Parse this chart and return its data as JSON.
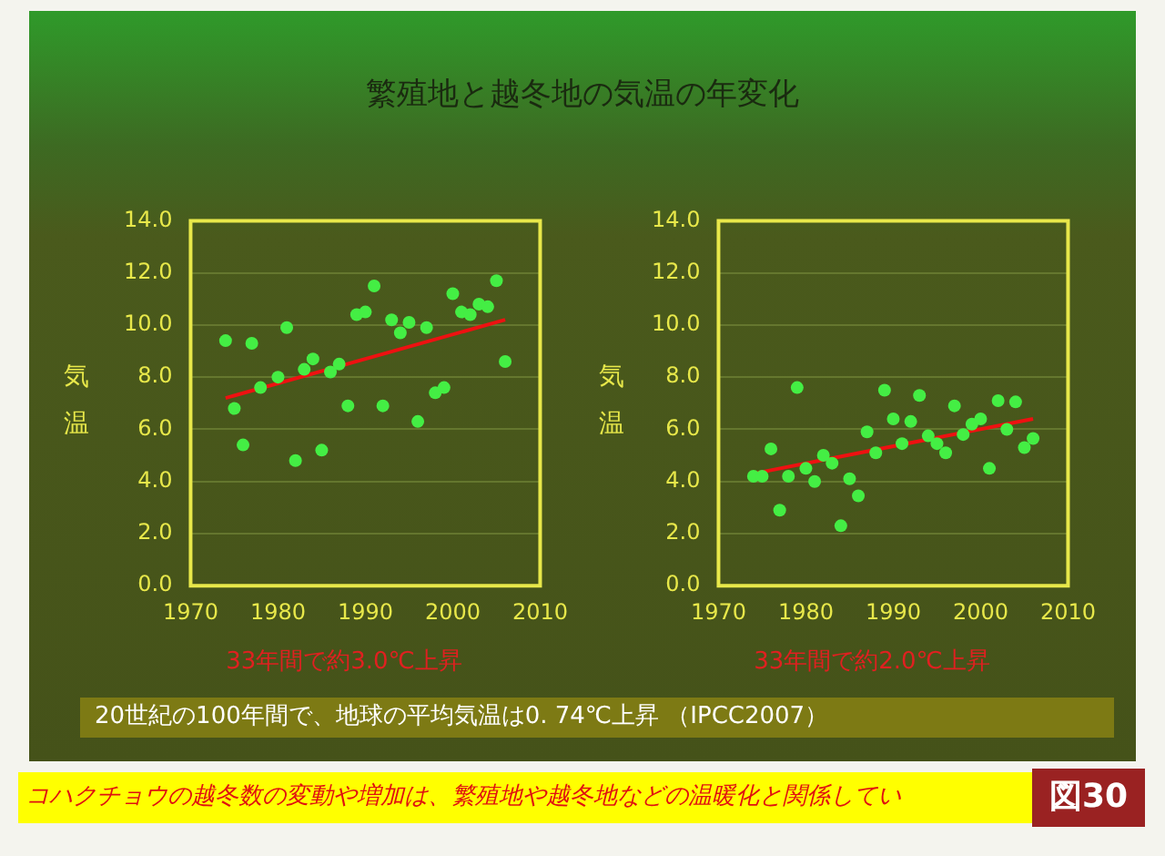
{
  "chart_data": [
    {
      "type": "scatter",
      "title": "繁殖地と越冬地の気温の年変化",
      "xlabel": "33年間で約3.0℃上昇",
      "ylabel": "気温",
      "annotations": [
        "20世紀の100年間で、地球の平均気温は0. 74℃上昇 （IPCC2007）",
        "コハクチョウの越冬数の変動や増加は、繁殖地や越冬地などの温暖化と関係してい",
        "図30"
      ],
      "series": [
        {
          "color": "#44ee44",
          "x": [
            1974,
            1975,
            1976,
            1977,
            1978,
            1980,
            1981,
            1982,
            1983,
            1984,
            1985,
            1986,
            1987,
            1988,
            1989,
            1990,
            1991,
            1992,
            1993,
            1994,
            1995,
            1996,
            1997,
            1998,
            1999,
            2000,
            2001,
            2002,
            2003,
            2004,
            2005,
            2006
          ],
          "values": [
            9.4,
            6.8,
            5.4,
            9.3,
            7.6,
            8.0,
            9.9,
            4.8,
            8.3,
            8.7,
            5.2,
            8.2,
            8.5,
            6.9,
            10.4,
            10.5,
            11.5,
            6.9,
            10.2,
            9.7,
            10.1,
            6.3,
            9.9,
            7.4,
            7.6,
            11.2,
            10.5,
            10.4,
            10.8,
            10.7,
            11.7,
            8.6
          ]
        },
        {
          "type": "line",
          "color": "#ee1111",
          "marker": "none",
          "x": [
            1974,
            2006
          ],
          "values": [
            7.2,
            10.2
          ]
        }
      ],
      "xlim": [
        1970,
        2010
      ],
      "xticks": [
        1970,
        1980,
        1990,
        2000,
        2010
      ],
      "ylim": [
        0,
        14
      ],
      "yticks": [
        {
          "value": 0,
          "label": "0.0"
        },
        {
          "value": 2,
          "label": "2.0"
        },
        {
          "value": 4,
          "label": "4.0"
        },
        {
          "value": 6,
          "label": "6.0"
        },
        {
          "value": 8,
          "label": "8.0"
        },
        {
          "value": 10,
          "label": "10.0"
        },
        {
          "value": 12,
          "label": "12.0"
        },
        {
          "value": 14,
          "label": "14.0"
        }
      ],
      "grid": "y",
      "marker": "circle",
      "legend": false
    },
    {
      "type": "scatter",
      "xlabel": "33年間で約2.0℃上昇",
      "ylabel": "気温",
      "series": [
        {
          "color": "#44ee44",
          "x": [
            1974,
            1975,
            1976,
            1977,
            1978,
            1979,
            1980,
            1981,
            1982,
            1983,
            1984,
            1985,
            1986,
            1987,
            1988,
            1989,
            1990,
            1991,
            1992,
            1993,
            1994,
            1995,
            1996,
            1997,
            1998,
            1999,
            2000,
            2001,
            2002,
            2003,
            2004,
            2005,
            2006
          ],
          "values": [
            4.2,
            4.2,
            5.25,
            2.9,
            4.2,
            7.6,
            4.5,
            4.0,
            5.0,
            4.7,
            2.3,
            4.1,
            3.45,
            5.9,
            5.1,
            7.5,
            6.4,
            5.45,
            6.3,
            7.3,
            5.75,
            5.45,
            5.1,
            6.9,
            5.8,
            6.2,
            6.4,
            4.5,
            7.1,
            6.0,
            7.05,
            5.3,
            5.65
          ]
        },
        {
          "type": "line",
          "color": "#ee1111",
          "marker": "none",
          "x": [
            1974,
            2006
          ],
          "values": [
            4.3,
            6.4
          ]
        }
      ],
      "xlim": [
        1970,
        2010
      ],
      "xticks": [
        1970,
        1980,
        1990,
        2000,
        2010
      ],
      "ylim": [
        0,
        14
      ],
      "yticks": [
        {
          "value": 0,
          "label": "0.0"
        },
        {
          "value": 2,
          "label": "2.0"
        },
        {
          "value": 4,
          "label": "4.0"
        },
        {
          "value": 6,
          "label": "6.0"
        },
        {
          "value": 8,
          "label": "8.0"
        },
        {
          "value": 10,
          "label": "10.0"
        },
        {
          "value": 12,
          "label": "12.0"
        },
        {
          "value": 14,
          "label": "14.0"
        }
      ],
      "grid": "y",
      "marker": "circle",
      "legend": false
    }
  ]
}
